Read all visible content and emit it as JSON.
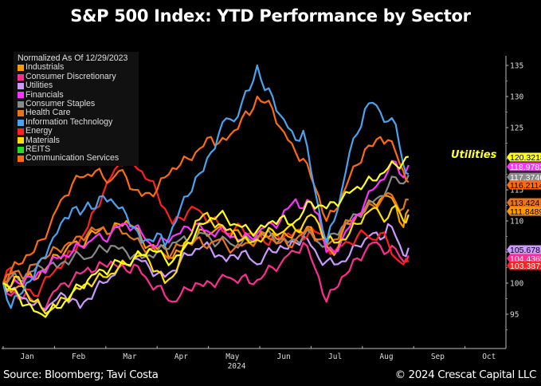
{
  "title": "S&P 500 Index: YTD Performance by Sector",
  "source": "Source: Bloomberg; Tavi Costa",
  "copyright": "© 2024 Crescat Capital LLC",
  "chart_data": {
    "type": "line",
    "title": "S&P 500 Index: YTD Performance by Sector",
    "xlabel": "2024",
    "ylabel": "",
    "legend_title": "Normalized As Of 12/29/2023",
    "legend_position": "top-left",
    "y_axis_position": "right",
    "ylim": [
      91,
      137
    ],
    "y_ticks": [
      95,
      100,
      105,
      110,
      115,
      120,
      125,
      130,
      135
    ],
    "y_tick_labels_shown": [
      95,
      100,
      110,
      115,
      125,
      130,
      135
    ],
    "x_tick_labels": [
      "Jan",
      "Feb",
      "Mar",
      "Apr",
      "May",
      "Jun",
      "Jul",
      "Aug",
      "Sep",
      "Oct"
    ],
    "x_year_label": "2024",
    "x_range_months": [
      0,
      10
    ],
    "x": [
      0,
      0.15,
      0.3,
      0.45,
      0.6,
      0.75,
      0.9,
      1.05,
      1.2,
      1.35,
      1.5,
      1.65,
      1.8,
      1.95,
      2.1,
      2.25,
      2.4,
      2.55,
      2.7,
      2.85,
      3.0,
      3.15,
      3.3,
      3.45,
      3.6,
      3.75,
      3.9,
      4.05,
      4.2,
      4.35,
      4.5,
      4.65,
      4.8,
      4.95,
      5.1,
      5.25,
      5.4,
      5.55,
      5.7,
      5.85,
      6.0,
      6.15,
      6.3,
      6.45,
      6.6,
      6.75,
      6.9,
      7.05,
      7.2,
      7.35,
      7.5,
      7.65,
      7.8,
      7.9
    ],
    "annotation": {
      "text": "Utilities",
      "color": "#ffff33",
      "near_series": "Utilities (highlighted)"
    },
    "series": [
      {
        "name": "Industrials",
        "color": "#ff9900",
        "end_label": "111.8489",
        "values": [
          100,
          98.5,
          99.5,
          101,
          100.5,
          102,
          103,
          104.5,
          105,
          106.5,
          106,
          107.5,
          108,
          109,
          108,
          109.5,
          110,
          109,
          107,
          106,
          105.5,
          106,
          104,
          105,
          106.5,
          107,
          108.5,
          108,
          109,
          108,
          108.5,
          107.5,
          106.5,
          107,
          107.5,
          108,
          107,
          107.5,
          108.5,
          108,
          109,
          107,
          106,
          104.5,
          108,
          109.5,
          111,
          112,
          113,
          113.5,
          114,
          112.5,
          109,
          111.85
        ]
      },
      {
        "name": "Consumer Discretionary",
        "color": "#ff2d92",
        "end_label": "104.4365",
        "values": [
          100,
          98,
          97.5,
          98.5,
          97,
          96,
          97.5,
          99,
          100,
          100.5,
          101.5,
          102.5,
          102,
          103,
          103.5,
          102.5,
          102,
          103,
          101.5,
          100,
          99.5,
          98,
          97,
          98,
          99,
          100,
          99.5,
          100,
          100.5,
          101,
          100.5,
          101,
          100,
          100.5,
          101.5,
          102.5,
          103,
          104.5,
          105,
          106.5,
          104,
          101,
          97,
          99,
          101,
          102,
          104,
          105,
          106.5,
          106,
          105,
          105.5,
          103.5,
          104.44
        ]
      },
      {
        "name": "Utilities",
        "color": "#cc99ff",
        "end_label": "105.6781",
        "values": [
          100,
          99,
          98,
          97.5,
          96.5,
          96,
          96.5,
          97.5,
          98,
          97.5,
          96,
          97.5,
          99,
          100,
          101,
          102.5,
          103,
          104,
          103.5,
          102.5,
          101.5,
          101,
          102,
          103.5,
          104.5,
          105.5,
          106,
          105.5,
          104.5,
          103.5,
          104.5,
          105,
          104,
          103,
          104.5,
          105,
          106,
          105.5,
          106.5,
          107.5,
          106,
          104,
          103.5,
          103,
          103.5,
          104.5,
          106,
          107,
          108,
          107,
          109.5,
          107.5,
          104.5,
          105.68
        ]
      },
      {
        "name": "Financials",
        "color": "#ff33ff",
        "end_label": "118.9782",
        "values": [
          100,
          99.5,
          100,
          101,
          100.5,
          102,
          103,
          104,
          104.5,
          105,
          106,
          106.5,
          107.5,
          107,
          108,
          109,
          109.5,
          109,
          108,
          106.5,
          106,
          107,
          107.5,
          108,
          109,
          109.5,
          108.5,
          108,
          108.5,
          108,
          107.5,
          107,
          107.5,
          108,
          109,
          109.5,
          110,
          112,
          113.5,
          112,
          113,
          111,
          105,
          105,
          107,
          109,
          111,
          113,
          115,
          116.5,
          118,
          119.5,
          117,
          118.98
        ]
      },
      {
        "name": "Consumer Staples",
        "color": "#8a8a8a",
        "end_label": "117.3746",
        "values": [
          100,
          101,
          100.5,
          101.5,
          102,
          102.5,
          103,
          102.5,
          103.5,
          104,
          104.5,
          104,
          105,
          105.5,
          106,
          105.5,
          105,
          104.5,
          104,
          104.5,
          105,
          105.5,
          106.5,
          107,
          106.5,
          107.5,
          108,
          107,
          106.5,
          107,
          106,
          106.5,
          107,
          107.5,
          108,
          107.5,
          107,
          106.5,
          107,
          107.5,
          108,
          106.5,
          106,
          108,
          109,
          110,
          111,
          112,
          113,
          114,
          115.5,
          117,
          116,
          117.37
        ]
      },
      {
        "name": "Health Care",
        "color": "#e8731a",
        "end_label": "113.424",
        "values": [
          100,
          101.5,
          102,
          101,
          103,
          104,
          104.5,
          105.5,
          106,
          106.5,
          107.5,
          108,
          108.5,
          109,
          108,
          109,
          108,
          107,
          106,
          105.5,
          105,
          104.5,
          105,
          106,
          106.5,
          107,
          106,
          106.5,
          107,
          106,
          105.5,
          106,
          106.5,
          107,
          108,
          107,
          106.5,
          106,
          107,
          108,
          108.5,
          107,
          106,
          107,
          108.5,
          110,
          111,
          111.5,
          112.5,
          113,
          114.5,
          113,
          112,
          113.42
        ]
      },
      {
        "name": "Information Technology",
        "color": "#4aa3f0",
        "end_label": "",
        "values": [
          100,
          96,
          98,
          100,
          101,
          104,
          106,
          108,
          110.5,
          112,
          111,
          113,
          112,
          114,
          113.5,
          112,
          111,
          109,
          106.5,
          107,
          108,
          106,
          109,
          112,
          114,
          117,
          118,
          121,
          124,
          126.5,
          126,
          129,
          131,
          135,
          131,
          130,
          127,
          125,
          123,
          124.5,
          118,
          112,
          106.5,
          110,
          115,
          121,
          124,
          128,
          129,
          127.5,
          126,
          125.5,
          119,
          117.5
        ]
      },
      {
        "name": "Energy",
        "color": "#ff2020",
        "end_label": "103.3872",
        "values": [
          100,
          102.5,
          100,
          99,
          98,
          99.5,
          101,
          102.5,
          103.5,
          105,
          107,
          109,
          112,
          114.5,
          117,
          119,
          120.5,
          119,
          118,
          116.5,
          114.5,
          112,
          109.5,
          110.5,
          111.5,
          112,
          111,
          110,
          109.5,
          108,
          108.5,
          109,
          108,
          107.5,
          106.5,
          107.5,
          107,
          108,
          108.5,
          107,
          109,
          108,
          106,
          105,
          106,
          106.5,
          107.5,
          108,
          107,
          108,
          106.5,
          104,
          103,
          103.39
        ]
      },
      {
        "name": "Materials",
        "color": "#ffe000",
        "end_label": "",
        "values": [
          100,
          99.5,
          101,
          98.5,
          97,
          96,
          95.5,
          96.5,
          97.5,
          98.5,
          99,
          100,
          100.5,
          101,
          101.5,
          102.5,
          103,
          104,
          104.5,
          103.5,
          102,
          100,
          101,
          104,
          107,
          110,
          111,
          110,
          109.5,
          108.5,
          108,
          107,
          106.5,
          107,
          107.5,
          108.5,
          108,
          109,
          108.5,
          109.5,
          111,
          109.5,
          107,
          106.5,
          107,
          108,
          109.5,
          111,
          112,
          111,
          110.5,
          112.5,
          110,
          111
        ]
      },
      {
        "name": "REITS",
        "color": "#22dd22",
        "end_label": "",
        "values": []
      },
      {
        "name": "Communication Services",
        "color": "#ff6a10",
        "end_label": "116.2114",
        "values": [
          100,
          102,
          103,
          104.5,
          105,
          107,
          109,
          112,
          114,
          116,
          117,
          117.5,
          118,
          117,
          116.5,
          118,
          117,
          115,
          114,
          114.5,
          115,
          117,
          118.5,
          119,
          120,
          121,
          122,
          123.5,
          122.5,
          123,
          124.5,
          126.5,
          127,
          130,
          129,
          128,
          125,
          123,
          121,
          120,
          117,
          114,
          110,
          111.5,
          114,
          117,
          119,
          121.5,
          122,
          123.5,
          123,
          121,
          118,
          116.21
        ]
      },
      {
        "name": "Utilities (highlighted)",
        "color": "#ffff1a",
        "end_label": "120.3218",
        "values": [
          100,
          99,
          98,
          96.5,
          95.5,
          95,
          95.5,
          96,
          97,
          98.5,
          99.5,
          100.5,
          101.5,
          102,
          102.5,
          103.5,
          103,
          104,
          104.5,
          105.5,
          105,
          104,
          103.5,
          104.5,
          106.5,
          108,
          109.5,
          110.5,
          111,
          110.5,
          109.5,
          109,
          108.5,
          108.5,
          109,
          110,
          110.5,
          109.5,
          110,
          111.5,
          113,
          112.5,
          112,
          113,
          113.5,
          114.5,
          115.5,
          116,
          116.5,
          117.5,
          118.5,
          119,
          119.5,
          120.32
        ]
      }
    ]
  }
}
